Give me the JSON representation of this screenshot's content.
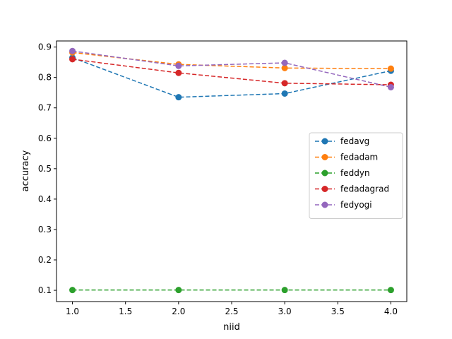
{
  "chart_data": {
    "type": "line",
    "title": "",
    "xlabel": "niid",
    "ylabel": "accuracy",
    "xlim": [
      0.85,
      4.15
    ],
    "ylim": [
      0.063,
      0.92
    ],
    "xticks": [
      "1.0",
      "1.5",
      "2.0",
      "2.5",
      "3.0",
      "3.5",
      "4.0"
    ],
    "yticks": [
      "0.1",
      "0.2",
      "0.3",
      "0.4",
      "0.5",
      "0.6",
      "0.7",
      "0.8",
      "0.9"
    ],
    "grid": false,
    "legend_position": "center-right",
    "x": [
      1.0,
      2.0,
      3.0,
      4.0
    ],
    "series": [
      {
        "name": "fedavg",
        "color": "#1f77b4",
        "values": [
          0.865,
          0.735,
          0.747,
          0.822
        ]
      },
      {
        "name": "fedadam",
        "color": "#ff7f0e",
        "values": [
          0.882,
          0.843,
          0.831,
          0.829
        ]
      },
      {
        "name": "feddyn",
        "color": "#2ca02c",
        "values": [
          0.101,
          0.101,
          0.101,
          0.101
        ]
      },
      {
        "name": "fedadagrad",
        "color": "#d62728",
        "values": [
          0.86,
          0.815,
          0.781,
          0.776
        ]
      },
      {
        "name": "fedyogi",
        "color": "#9467bd",
        "values": [
          0.887,
          0.838,
          0.848,
          0.768
        ]
      }
    ]
  }
}
